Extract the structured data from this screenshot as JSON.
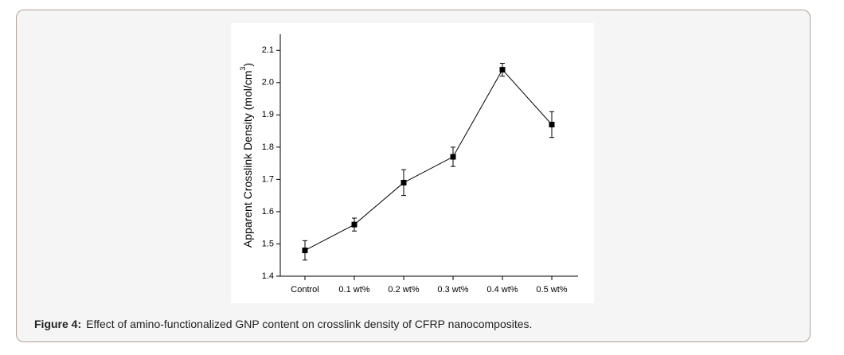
{
  "chart_data": {
    "type": "line",
    "y_label": "Apparent Crosslink Density (mol/cm",
    "y_label_sup": "3",
    "y_label_end": ")",
    "categories": [
      "Control",
      "0.1 wt%",
      "0.2 wt%",
      "0.3 wt%",
      "0.4 wt%",
      "0.5 wt%"
    ],
    "values": [
      1.48,
      1.56,
      1.69,
      1.77,
      2.04,
      1.87
    ],
    "errors": [
      0.03,
      0.02,
      0.04,
      0.03,
      0.02,
      0.04
    ],
    "color": "#000000",
    "ylim": [
      1.4,
      2.15
    ],
    "yticks": [
      {
        "value": 1.4,
        "label": "1.4"
      },
      {
        "value": 1.5,
        "label": "1.5"
      },
      {
        "value": 1.6,
        "label": "1.6"
      },
      {
        "value": 1.7,
        "label": "1.7"
      },
      {
        "value": 1.8,
        "label": "1.8"
      },
      {
        "value": 1.9,
        "label": "1.9"
      },
      {
        "value": 2.0,
        "label": "2.0"
      },
      {
        "value": 2.1,
        "label": "2.1"
      }
    ]
  },
  "caption": {
    "label": "Figure 4:",
    "text": "Effect of amino-functionalized GNP content on crosslink density of CFRP nanocomposites."
  }
}
